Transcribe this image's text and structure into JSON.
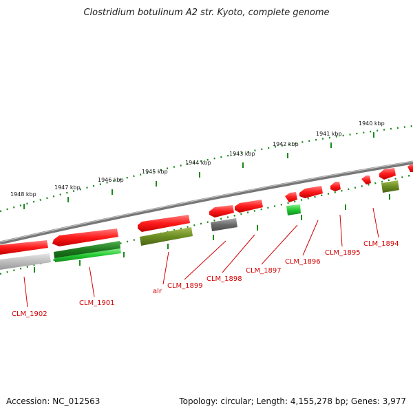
{
  "title": "Clostridium botulinum A2 str. Kyoto, complete genome",
  "footer": {
    "accession": "Accession: NC_012563",
    "summary": "Topology: circular; Length: 4,155,278 bp; Genes: 3,977"
  },
  "scale_ticks": [
    "1948 kbp",
    "1947 kbp",
    "1946 kbp",
    "1945 kbp",
    "1944 kbp",
    "1943 kbp",
    "1942 kbp",
    "1941 kbp",
    "1940 kbp"
  ],
  "gene_labels": [
    "CLM_1902",
    "CLM_1901",
    "alr",
    "CLM_1899",
    "CLM_1898",
    "CLM_1897",
    "CLM_1896",
    "CLM_1895",
    "CLM_1894"
  ],
  "colors": {
    "cds_red": "#ff1a1a",
    "gene_green": "#22c832",
    "gene_olive": "#6b8e23",
    "gene_gray": "#777777",
    "gene_lightgray": "#bdbdbd",
    "backbone": "#888888",
    "tick_green": "#1a8a1a",
    "label_red": "#d40000"
  }
}
